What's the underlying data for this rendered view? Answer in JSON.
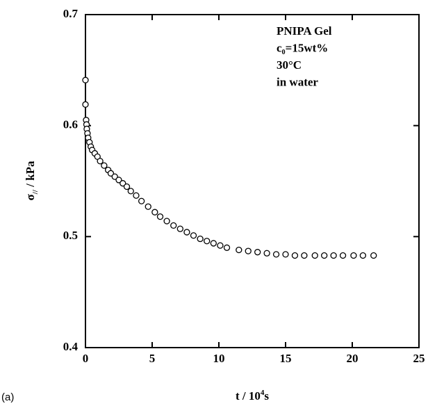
{
  "chart_data": {
    "type": "scatter",
    "panel_label": "(a)",
    "x_label": [
      "t / 10",
      "4",
      "s"
    ],
    "y_label": [
      "σ",
      "//",
      " / kPa"
    ],
    "annotations": [
      "PNIPA Gel",
      "c₀=15wt%",
      "30°C",
      "in water"
    ],
    "xlim": [
      0,
      25
    ],
    "xticks": [
      0,
      5,
      10,
      15,
      20,
      25
    ],
    "ylim": [
      0.4,
      0.7
    ],
    "yticks": [
      0.4,
      0.5,
      0.6,
      0.7
    ],
    "color": "#000000",
    "x": [
      0,
      0,
      0.05,
      0.08,
      0.1,
      0.15,
      0.2,
      0.3,
      0.4,
      0.5,
      0.7,
      0.9,
      1.1,
      1.4,
      1.7,
      1.9,
      2.2,
      2.5,
      2.8,
      3.1,
      3.4,
      3.8,
      4.2,
      4.7,
      5.2,
      5.6,
      6.1,
      6.6,
      7.1,
      7.6,
      8.1,
      8.6,
      9.1,
      9.6,
      10.1,
      10.6,
      11.5,
      12.2,
      12.9,
      13.6,
      14.3,
      15.0,
      15.7,
      16.4,
      17.2,
      17.9,
      18.6,
      19.3,
      20.1,
      20.8,
      21.6
    ],
    "values": [
      0.641,
      0.619,
      0.605,
      0.601,
      0.597,
      0.593,
      0.589,
      0.585,
      0.581,
      0.578,
      0.575,
      0.572,
      0.568,
      0.564,
      0.56,
      0.557,
      0.554,
      0.551,
      0.548,
      0.545,
      0.541,
      0.537,
      0.532,
      0.527,
      0.522,
      0.518,
      0.514,
      0.51,
      0.507,
      0.504,
      0.501,
      0.498,
      0.496,
      0.494,
      0.492,
      0.49,
      0.488,
      0.487,
      0.486,
      0.485,
      0.484,
      0.484,
      0.483,
      0.483,
      0.483,
      0.483,
      0.483,
      0.483,
      0.483,
      0.483,
      0.483
    ]
  }
}
